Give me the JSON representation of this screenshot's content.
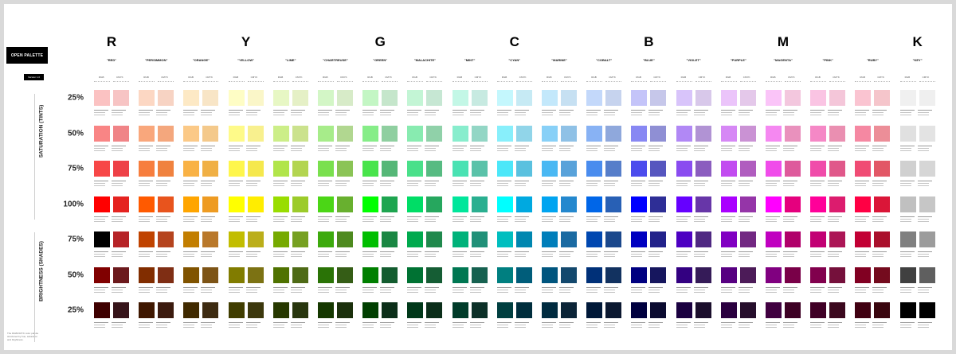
{
  "brand": {
    "title": "OPEN PALETTE",
    "version": "Version 1.0"
  },
  "footnote": "The RGB/CMYK color palette structured by hue, saturation and brightness.",
  "axis_labels": {
    "saturation": "SATURATION (TINTS)",
    "brightness": "BRIGHTNESS (SHADES)"
  },
  "model_labels": {
    "rgb": "RGB",
    "cmyk": "CMYK"
  },
  "rows": [
    "25%",
    "50%",
    "75%",
    "100%",
    "75%",
    "50%",
    "25%"
  ],
  "hues": [
    {
      "letter": "R",
      "name": "\"RED\"",
      "rgb": [
        "#FBC2C2",
        "#F98585",
        "#F74747",
        "#FF0000",
        "#000000",
        "#800000",
        "#3F0000"
      ],
      "cmyk": [
        "#F7C4C4",
        "#F08487",
        "#EE4147",
        "#E52320",
        "#B62327",
        "#6C1A1D",
        "#37151A"
      ]
    },
    {
      "letter": "",
      "name": "\"PERSIMMON\"",
      "rgb": [
        "#FCD7C3",
        "#F9A77C",
        "#F77E3E",
        "#FF5A00",
        "#C04300",
        "#812D00",
        "#3F1700"
      ],
      "cmyk": [
        "#F7D3C3",
        "#F4A77D",
        "#F0823F",
        "#E8541D",
        "#B5441E",
        "#7F2E14",
        "#3B1A0E"
      ]
    },
    {
      "letter": "",
      "name": "\"ORANGE\"",
      "rgb": [
        "#FDE9C5",
        "#FBC987",
        "#F9B245",
        "#FFA500",
        "#C27E00",
        "#805300",
        "#402A00"
      ],
      "cmyk": [
        "#F8E5C6",
        "#F4C98B",
        "#F0B045",
        "#EE9B22",
        "#B9782A",
        "#7D5416",
        "#3D2B11"
      ]
    },
    {
      "letter": "Y",
      "name": "\"YELLOW\"",
      "rgb": [
        "#FEFDC5",
        "#FEFA89",
        "#FEF64C",
        "#FFFF00",
        "#C2BD00",
        "#817C00",
        "#403D00"
      ],
      "cmyk": [
        "#FAF6C8",
        "#F8F08E",
        "#F5E84D",
        "#FFED00",
        "#BBAE1A",
        "#7C7213",
        "#3C380D"
      ]
    },
    {
      "letter": "",
      "name": "\"LIME\"",
      "rgb": [
        "#E7F7C4",
        "#CCEE88",
        "#B1E54A",
        "#99DD00",
        "#76AA00",
        "#4F7200",
        "#273800"
      ],
      "cmyk": [
        "#E5F0C6",
        "#CBE28D",
        "#B3D550",
        "#9CCB2A",
        "#76A021",
        "#4E6A16",
        "#28360E"
      ]
    },
    {
      "letter": "",
      "name": "\"CHARTREUSE\"",
      "rgb": [
        "#D3F6C6",
        "#A7EC8A",
        "#7AE04E",
        "#4BD616",
        "#3DAA0D",
        "#2A7306",
        "#153800"
      ],
      "cmyk": [
        "#D7EBC8",
        "#B1D790",
        "#8BC456",
        "#68B02F",
        "#4E8A1F",
        "#355D16",
        "#1B300C"
      ]
    },
    {
      "letter": "G",
      "name": "\"GREEN\"",
      "rgb": [
        "#C3F6C4",
        "#86ED88",
        "#48E44B",
        "#00FF00",
        "#00BE00",
        "#007F00",
        "#003F00"
      ],
      "cmyk": [
        "#C5E6CB",
        "#8FCFA0",
        "#55B777",
        "#1EA550",
        "#1A8743",
        "#135C2F",
        "#0B2E18"
      ]
    },
    {
      "letter": "",
      "name": "\"MALACHITE\"",
      "rgb": [
        "#C3F5D5",
        "#88EBB0",
        "#4AE08A",
        "#00DD66",
        "#00AA4E",
        "#007233",
        "#003819"
      ],
      "cmyk": [
        "#C6E7D3",
        "#90D1A9",
        "#57BB82",
        "#26A75E",
        "#20894D",
        "#155D34",
        "#0B2E1A"
      ]
    },
    {
      "letter": "",
      "name": "\"MINT\"",
      "rgb": [
        "#C3F7E6",
        "#88EDCD",
        "#4AE2B3",
        "#00E69B",
        "#00B27A",
        "#007752",
        "#003B29"
      ],
      "cmyk": [
        "#C7EAE1",
        "#93D6C5",
        "#5AC2A9",
        "#2AAF90",
        "#219078",
        "#166150",
        "#0C3028"
      ]
    },
    {
      "letter": "C",
      "name": "\"CYAN\"",
      "rgb": [
        "#C4F7FD",
        "#88EFFB",
        "#4CE7F9",
        "#00FFFF",
        "#00BEBF",
        "#007F80",
        "#003F40"
      ],
      "cmyk": [
        "#C6EAF4",
        "#91D5E9",
        "#5AC1DF",
        "#00A9E0",
        "#0087B0",
        "#005D7A",
        "#002E3D"
      ]
    },
    {
      "letter": "",
      "name": "\"MARINE\"",
      "rgb": [
        "#C3E8FB",
        "#88D0F7",
        "#4AB8F3",
        "#00A4F0",
        "#007EBA",
        "#00557E",
        "#002B3F"
      ],
      "cmyk": [
        "#C6E0F2",
        "#8FC1E6",
        "#58A2DA",
        "#2488CE",
        "#1A6AA2",
        "#13486D",
        "#0B2437"
      ]
    },
    {
      "letter": "",
      "name": "\"COBALT\"",
      "rgb": [
        "#C3D8FA",
        "#88B2F4",
        "#4A8CEE",
        "#0066E8",
        "#0047B0",
        "#003078",
        "#001838"
      ],
      "cmyk": [
        "#C6D3EE",
        "#8FA8DC",
        "#567ECA",
        "#2860B5",
        "#1B488C",
        "#123260",
        "#0B1830"
      ]
    },
    {
      "letter": "B",
      "name": "\"BLUE\"",
      "rgb": [
        "#C4C4F9",
        "#8888F3",
        "#4C4CED",
        "#0000FF",
        "#0000C0",
        "#000080",
        "#00003F"
      ],
      "cmyk": [
        "#C6C7EA",
        "#8F8FD4",
        "#5656BF",
        "#2E2E96",
        "#22228A",
        "#16165E",
        "#0B0B30"
      ]
    },
    {
      "letter": "",
      "name": "\"VIOLET\"",
      "rgb": [
        "#D8C4FA",
        "#B188F5",
        "#8A4CF0",
        "#6600FF",
        "#4D00C2",
        "#330081",
        "#1A0040"
      ],
      "cmyk": [
        "#D8C8EA",
        "#B193D4",
        "#8B5DBF",
        "#6736A8",
        "#4F2882",
        "#351B58",
        "#1B0E2C"
      ]
    },
    {
      "letter": "",
      "name": "\"PURPLE\"",
      "rgb": [
        "#EBC4FA",
        "#D688F5",
        "#C24CF0",
        "#AA00FF",
        "#8100C2",
        "#570081",
        "#2B0040"
      ],
      "cmyk": [
        "#E4C8EA",
        "#CA92D4",
        "#B05DBF",
        "#9535A8",
        "#722882",
        "#4C1B58",
        "#260E2C"
      ]
    },
    {
      "letter": "M",
      "name": "\"MAGENTA\"",
      "rgb": [
        "#FAC4F8",
        "#F588F1",
        "#F04CEA",
        "#FF00FF",
        "#C000C0",
        "#800080",
        "#400040"
      ],
      "cmyk": [
        "#F3C7DE",
        "#E991BD",
        "#DE5A9C",
        "#E5007E",
        "#B0006A",
        "#790048",
        "#3D0024"
      ]
    },
    {
      "letter": "",
      "name": "\"PINK\"",
      "rgb": [
        "#FAC4E3",
        "#F588C6",
        "#F04CAA",
        "#FF0099",
        "#C20074",
        "#81004D",
        "#400026"
      ],
      "cmyk": [
        "#F4C6D9",
        "#EA8FB1",
        "#E0588A",
        "#DC1C6E",
        "#AC1656",
        "#75103B",
        "#3B081E"
      ]
    },
    {
      "letter": "",
      "name": "\"RUBY\"",
      "rgb": [
        "#FAC4D1",
        "#F588A2",
        "#F04C74",
        "#FF0044",
        "#C20034",
        "#810022",
        "#400011"
      ],
      "cmyk": [
        "#F5C5CB",
        "#EC8E98",
        "#E25766",
        "#DA1638",
        "#AA102C",
        "#740B1E",
        "#3A060F"
      ]
    },
    {
      "letter": "K",
      "name": "\"KEY\"",
      "rgb": [
        "#F0F0F0",
        "#E0E0E0",
        "#D0D0D0",
        "#C0C0C0",
        "#808080",
        "#404040",
        "#000000"
      ],
      "cmyk": [
        "#EFEFEF",
        "#E3E3E3",
        "#D6D6D6",
        "#C6C6C6",
        "#9C9C9C",
        "#5F5F5F",
        "#000000"
      ]
    }
  ]
}
